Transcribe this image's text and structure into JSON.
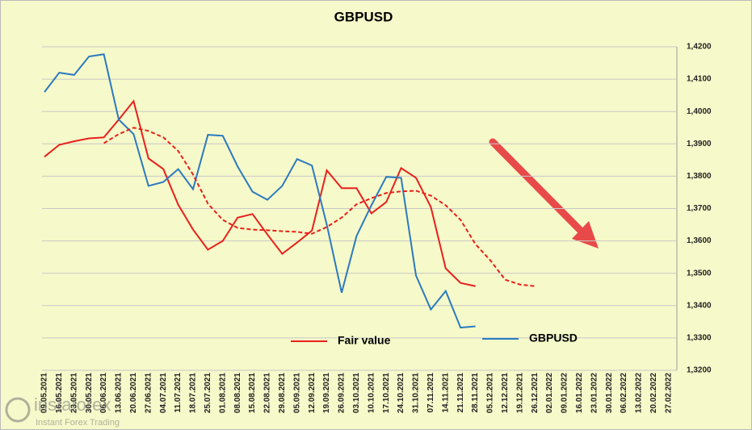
{
  "chart_data": {
    "type": "line",
    "title": "GBPUSD",
    "categories": [
      "09.05.2021",
      "16.05.2021",
      "23.05.2021",
      "30.05.2021",
      "06.06.2021",
      "13.06.2021",
      "20.06.2021",
      "27.06.2021",
      "04.07.2021",
      "11.07.2021",
      "18.07.2021",
      "25.07.2021",
      "01.08.2021",
      "08.08.2021",
      "15.08.2021",
      "22.08.2021",
      "29.08.2021",
      "05.09.2021",
      "12.09.2021",
      "19.09.2021",
      "26.09.2021",
      "03.10.2021",
      "10.10.2021",
      "17.10.2021",
      "24.10.2021",
      "31.10.2021",
      "07.11.2021",
      "14.11.2021",
      "21.11.2021",
      "28.11.2021",
      "05.12.2021",
      "12.12.2021",
      "19.12.2021",
      "26.12.2021",
      "02.01.2022",
      "09.01.2022",
      "16.01.2022",
      "23.01.2022",
      "30.01.2022",
      "06.02.2022",
      "13.02.2022",
      "20.02.2022",
      "27.02.2022"
    ],
    "series": [
      {
        "name": "Fair value",
        "color": "#e8201c",
        "dash": false,
        "values": [
          1.386,
          1.3897,
          1.3908,
          1.3917,
          1.392,
          1.3975,
          1.4032,
          1.3855,
          1.3822,
          1.3712,
          1.3635,
          1.3573,
          1.36,
          1.3672,
          1.3683,
          1.362,
          1.356,
          1.3595,
          1.3632,
          1.3818,
          1.3763,
          1.3763,
          1.3685,
          1.372,
          1.3825,
          1.3795,
          1.3705,
          1.3515,
          1.347,
          1.346,
          null,
          null,
          null,
          null,
          null,
          null,
          null,
          null,
          null,
          null,
          null,
          null,
          null
        ]
      },
      {
        "name": "GBPUSD",
        "color": "#2a7abf",
        "dash": false,
        "values": [
          1.406,
          1.412,
          1.4113,
          1.417,
          1.4177,
          1.3975,
          1.393,
          1.377,
          1.3782,
          1.3822,
          1.376,
          1.3928,
          1.3925,
          1.383,
          1.3752,
          1.3727,
          1.377,
          1.3853,
          1.3833,
          1.365,
          1.344,
          1.3615,
          1.371,
          1.3798,
          1.3795,
          1.3493,
          1.3388,
          1.3445,
          1.3332,
          1.3336,
          null,
          null,
          null,
          null,
          null,
          null,
          null,
          null,
          null,
          null,
          null,
          null,
          null
        ]
      },
      {
        "color": "#e8201c",
        "dash": true,
        "values": [
          null,
          null,
          null,
          null,
          1.3902,
          1.393,
          1.395,
          1.394,
          1.392,
          1.3878,
          1.3805,
          1.3715,
          1.3665,
          1.364,
          1.3635,
          1.3633,
          1.363,
          1.3628,
          1.3622,
          1.3643,
          1.3672,
          1.3713,
          1.3732,
          1.3748,
          1.3753,
          1.3755,
          1.374,
          1.371,
          1.3665,
          1.359,
          1.354,
          1.348,
          1.3465,
          1.346,
          null,
          null,
          null,
          null,
          null,
          null,
          null,
          null,
          null
        ]
      }
    ],
    "ylim": [
      1.32,
      1.42
    ],
    "yticks": [
      {
        "value": 1.32,
        "label": "1,3200"
      },
      {
        "value": 1.33,
        "label": "1,3300"
      },
      {
        "value": 1.34,
        "label": "1,3400"
      },
      {
        "value": 1.35,
        "label": "1,3500"
      },
      {
        "value": 1.36,
        "label": "1,3600"
      },
      {
        "value": 1.37,
        "label": "1,3700"
      },
      {
        "value": 1.38,
        "label": "1,3800"
      },
      {
        "value": 1.39,
        "label": "1,3900"
      },
      {
        "value": 1.4,
        "label": "1,4000"
      },
      {
        "value": 1.41,
        "label": "1,4100"
      },
      {
        "value": 1.42,
        "label": "1,4200"
      }
    ],
    "grid": true
  },
  "watermark": {
    "brand": "instaforex",
    "tagline": "Instant Forex Trading"
  }
}
